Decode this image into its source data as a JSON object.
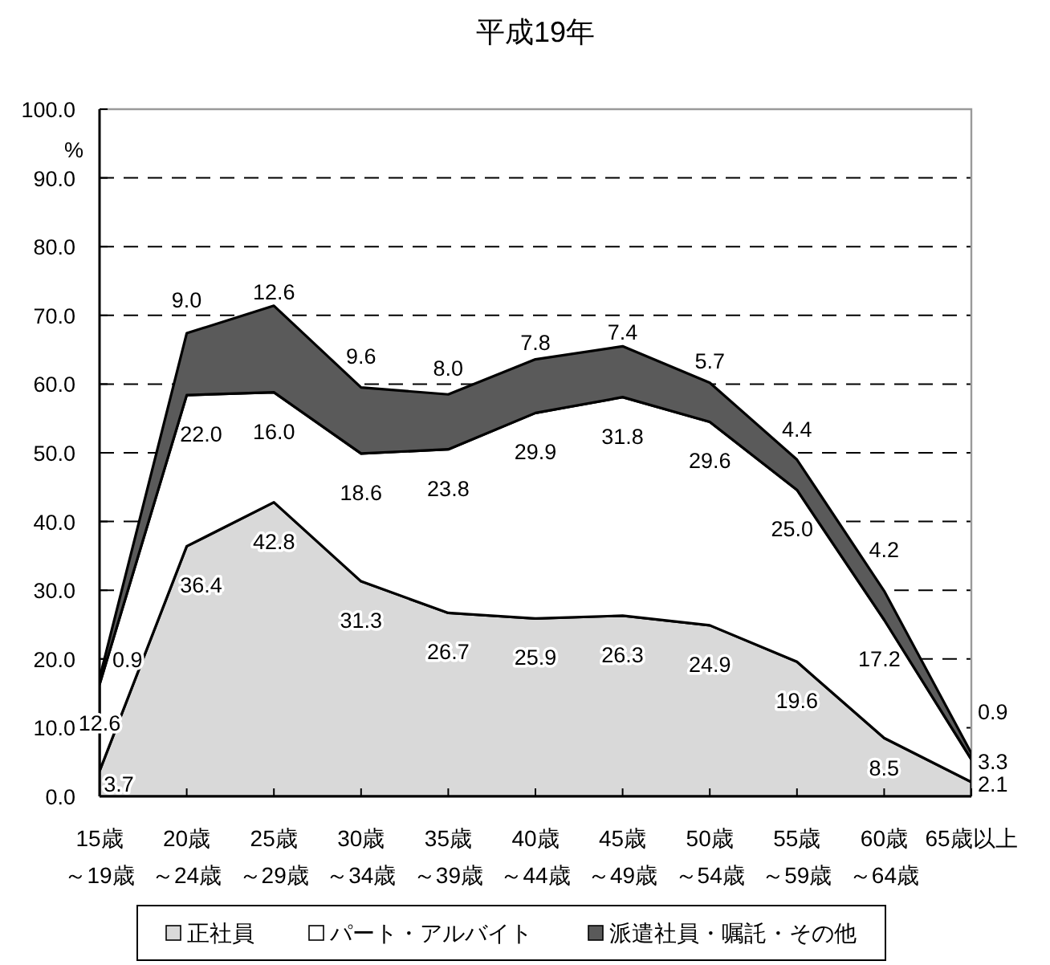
{
  "chart_data": {
    "type": "area",
    "stacked": true,
    "title": "平成19年",
    "ylabel": "%",
    "categories": [
      "15歳～19歳",
      "20歳～24歳",
      "25歳～29歳",
      "30歳～34歳",
      "35歳～39歳",
      "40歳～44歳",
      "45歳～49歳",
      "50歳～54歳",
      "55歳～59歳",
      "60歳～64歳",
      "65歳以上"
    ],
    "series": [
      {
        "name": "正社員",
        "color": "#d9d9d9",
        "values": [
          3.7,
          36.4,
          42.8,
          31.3,
          26.7,
          25.9,
          26.3,
          24.9,
          19.6,
          8.5,
          2.1
        ],
        "value_labels": [
          "3.7",
          "36.4",
          "42.8",
          "31.3",
          "26.7",
          "25.9",
          "26.3",
          "24.9",
          "19.6",
          "8.5",
          "2.1"
        ]
      },
      {
        "name": "パート・アルバイト",
        "color": "#ffffff",
        "values": [
          12.6,
          22.0,
          16.0,
          18.6,
          23.8,
          29.9,
          31.8,
          29.6,
          25.0,
          17.2,
          3.3
        ],
        "value_labels": [
          "12.6",
          "22.0",
          "16.0",
          "18.6",
          "23.8",
          "29.9",
          "31.8",
          "29.6",
          "25.0",
          "17.2",
          "3.3"
        ]
      },
      {
        "name": "派遣社員・嘱託・その他",
        "color": "#5a5a5a",
        "values": [
          0.9,
          9.0,
          12.6,
          9.6,
          8.0,
          7.8,
          7.4,
          5.7,
          4.4,
          4.2,
          0.9
        ],
        "value_labels": [
          "0.9",
          "9.0",
          "12.6",
          "9.6",
          "8.0",
          "7.8",
          "7.4",
          "5.7",
          "4.4",
          "4.2",
          "0.9"
        ]
      }
    ],
    "ylim": [
      0,
      100
    ],
    "yticks": [
      {
        "value": 0,
        "label": "0.0"
      },
      {
        "value": 10,
        "label": "10.0"
      },
      {
        "value": 20,
        "label": "20.0"
      },
      {
        "value": 30,
        "label": "30.0"
      },
      {
        "value": 40,
        "label": "40.0"
      },
      {
        "value": 50,
        "label": "50.0"
      },
      {
        "value": 60,
        "label": "60.0"
      },
      {
        "value": 70,
        "label": "70.0"
      },
      {
        "value": 80,
        "label": "80.0"
      },
      {
        "value": 90,
        "label": "90.0"
      },
      {
        "value": 100,
        "label": "100.0"
      }
    ],
    "grid": "y",
    "legend": "bottom"
  }
}
